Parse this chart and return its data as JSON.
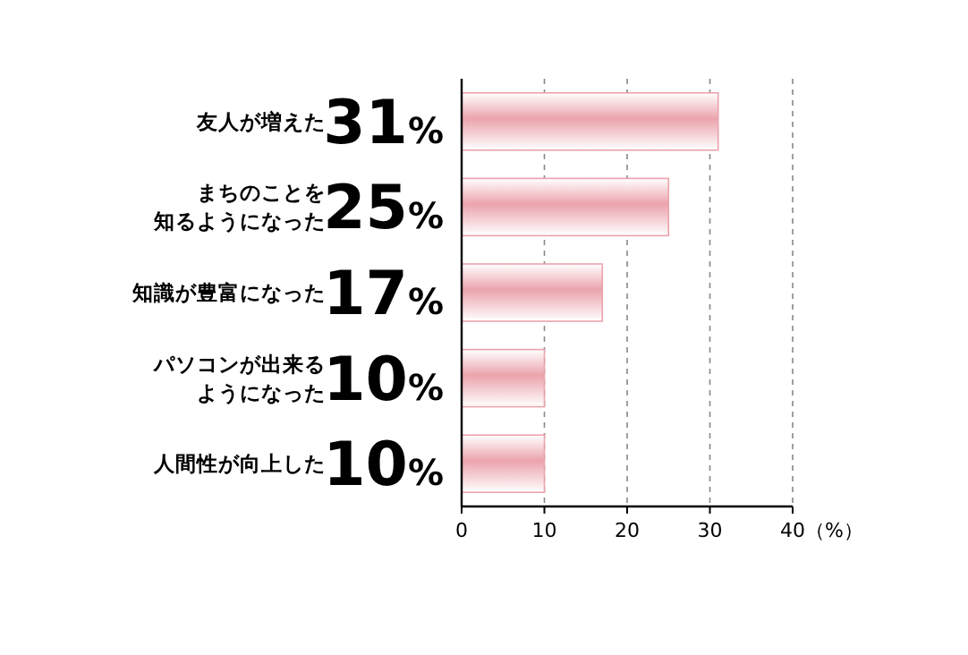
{
  "chart_data": {
    "type": "bar",
    "orientation": "horizontal",
    "categories": [
      "友人が増えた",
      "まちのことを知るようになった",
      "知識が豊富になった",
      "パソコンが出来るようになった",
      "人間性が向上した"
    ],
    "values": [
      31,
      25,
      17,
      10,
      10
    ],
    "value_labels": [
      "31%",
      "25%",
      "17%",
      "10%",
      "10%"
    ],
    "color": "#eba3ac",
    "xlim": [
      0,
      40
    ],
    "xticks": [
      0,
      10,
      20,
      30,
      40
    ],
    "xlabel": "（%）",
    "grid": "x"
  }
}
